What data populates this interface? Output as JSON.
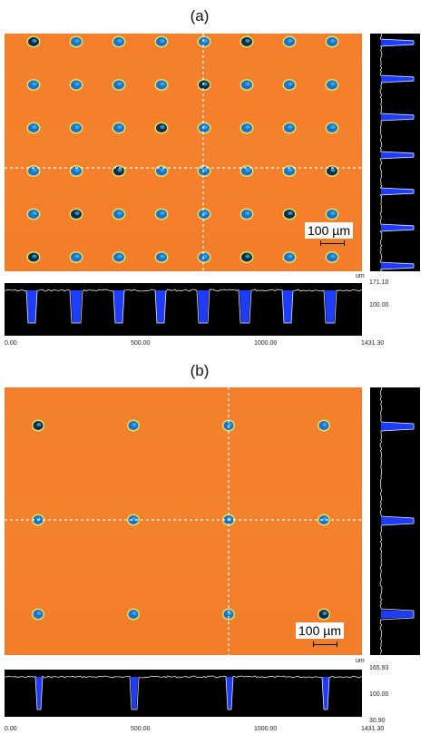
{
  "panels": [
    {
      "label": "(a)",
      "scale_bar": "100 µm",
      "unit": "um",
      "axis_x": [
        "0.00",
        "500.00",
        "1000.00",
        "1431.30"
      ],
      "axis_z": [
        "171.10",
        "100.00"
      ],
      "grid": {
        "cols": 8,
        "rows": 6
      }
    },
    {
      "label": "(b)",
      "scale_bar": "100 µm",
      "unit": "um",
      "axis_x": [
        "0.00",
        "500.00",
        "1000.00",
        "1431.30"
      ],
      "axis_z": [
        "165.93",
        "100.00",
        "30.90"
      ],
      "grid": {
        "cols": 4,
        "rows": 3
      }
    }
  ],
  "colors": {
    "surface": "#f37f2d",
    "hole": "#1f6fd0",
    "profile_bg": "#000000",
    "profile_fill": "#1e3cff"
  }
}
